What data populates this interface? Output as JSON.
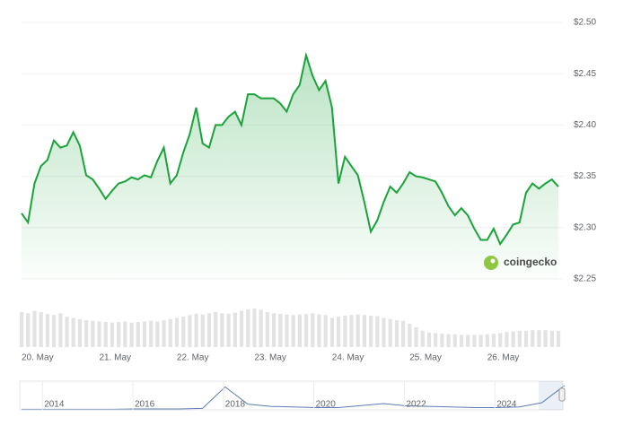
{
  "chart_data": [
    {
      "type": "line",
      "color": "#1aa33a",
      "watermark": "coingecko",
      "categories": [
        "20. May",
        null,
        null,
        null,
        null,
        null,
        null,
        null,
        null,
        null,
        null,
        null,
        "21. May",
        null,
        null,
        null,
        null,
        null,
        null,
        null,
        null,
        null,
        null,
        null,
        "22. May",
        null,
        null,
        null,
        null,
        null,
        null,
        null,
        null,
        null,
        null,
        null,
        "23. May",
        null,
        null,
        null,
        null,
        null,
        null,
        null,
        null,
        null,
        null,
        null,
        "24. May",
        null,
        null,
        null,
        null,
        null,
        null,
        null,
        null,
        null,
        null,
        null,
        "25. May",
        null,
        null,
        null,
        null,
        null,
        null,
        null,
        null,
        null,
        null,
        null,
        "26. May",
        null,
        null,
        null,
        null,
        null,
        null,
        null,
        null,
        null,
        null,
        null
      ],
      "values": [
        2.314,
        2.305,
        2.343,
        2.36,
        2.366,
        2.385,
        2.378,
        2.38,
        2.393,
        2.38,
        2.351,
        2.347,
        2.338,
        2.328,
        2.336,
        2.343,
        2.345,
        2.349,
        2.347,
        2.351,
        2.349,
        2.365,
        2.378,
        2.343,
        2.351,
        2.373,
        2.391,
        2.417,
        2.382,
        2.378,
        2.4,
        2.4,
        2.408,
        2.413,
        2.4,
        2.43,
        2.43,
        2.426,
        2.426,
        2.426,
        2.421,
        2.413,
        2.43,
        2.439,
        2.468,
        2.448,
        2.434,
        2.443,
        2.417,
        2.343,
        2.369,
        2.36,
        2.351,
        2.325,
        2.296,
        2.307,
        2.325,
        2.34,
        2.334,
        2.343,
        2.354,
        2.35,
        2.349,
        2.347,
        2.345,
        2.334,
        2.321,
        2.312,
        2.319,
        2.312,
        2.299,
        2.288,
        2.288,
        2.299,
        2.284,
        2.293,
        2.303,
        2.305,
        2.334,
        2.343,
        2.338,
        2.343,
        2.347,
        2.34
      ],
      "ylim": [
        2.25,
        2.5
      ],
      "yticks": [
        {
          "value": 2.25,
          "label": "$2.25"
        },
        {
          "value": 2.3,
          "label": "$2.30"
        },
        {
          "value": 2.35,
          "label": "$2.35"
        },
        {
          "value": 2.4,
          "label": "$2.40"
        },
        {
          "value": 2.45,
          "label": "$2.45"
        },
        {
          "value": 2.5,
          "label": "$2.50"
        }
      ],
      "grid": true
    },
    {
      "type": "bar",
      "color": "#e3e3e3",
      "ylim": [
        0,
        100
      ],
      "values": [
        60,
        58,
        62,
        60,
        57,
        55,
        58,
        52,
        50,
        48,
        46,
        45,
        44,
        43,
        42,
        43,
        44,
        42,
        43,
        44,
        45,
        44,
        46,
        48,
        50,
        52,
        55,
        57,
        56,
        58,
        60,
        58,
        57,
        59,
        62,
        65,
        66,
        64,
        60,
        58,
        57,
        56,
        55,
        56,
        57,
        58,
        56,
        55,
        50,
        52,
        54,
        55,
        56,
        55,
        54,
        53,
        50,
        48,
        46,
        45,
        40,
        34,
        28,
        25,
        24,
        23,
        22,
        22,
        21,
        21,
        21,
        21,
        22,
        23,
        24,
        26,
        27,
        28,
        28,
        29,
        29,
        29,
        28,
        28
      ]
    },
    {
      "type": "line",
      "color": "#5b7bb6",
      "ylim": [
        0,
        100
      ],
      "categories": [
        null,
        "2014",
        null,
        null,
        null,
        "2016",
        null,
        null,
        null,
        "2018",
        null,
        null,
        null,
        "2020",
        null,
        null,
        null,
        "2022",
        null,
        null,
        null,
        "2024",
        null,
        null,
        null
      ],
      "values": [
        2,
        2,
        2,
        2,
        2,
        3,
        3,
        3,
        5,
        80,
        20,
        12,
        10,
        8,
        8,
        15,
        22,
        14,
        12,
        10,
        8,
        8,
        10,
        25,
        85
      ]
    }
  ]
}
